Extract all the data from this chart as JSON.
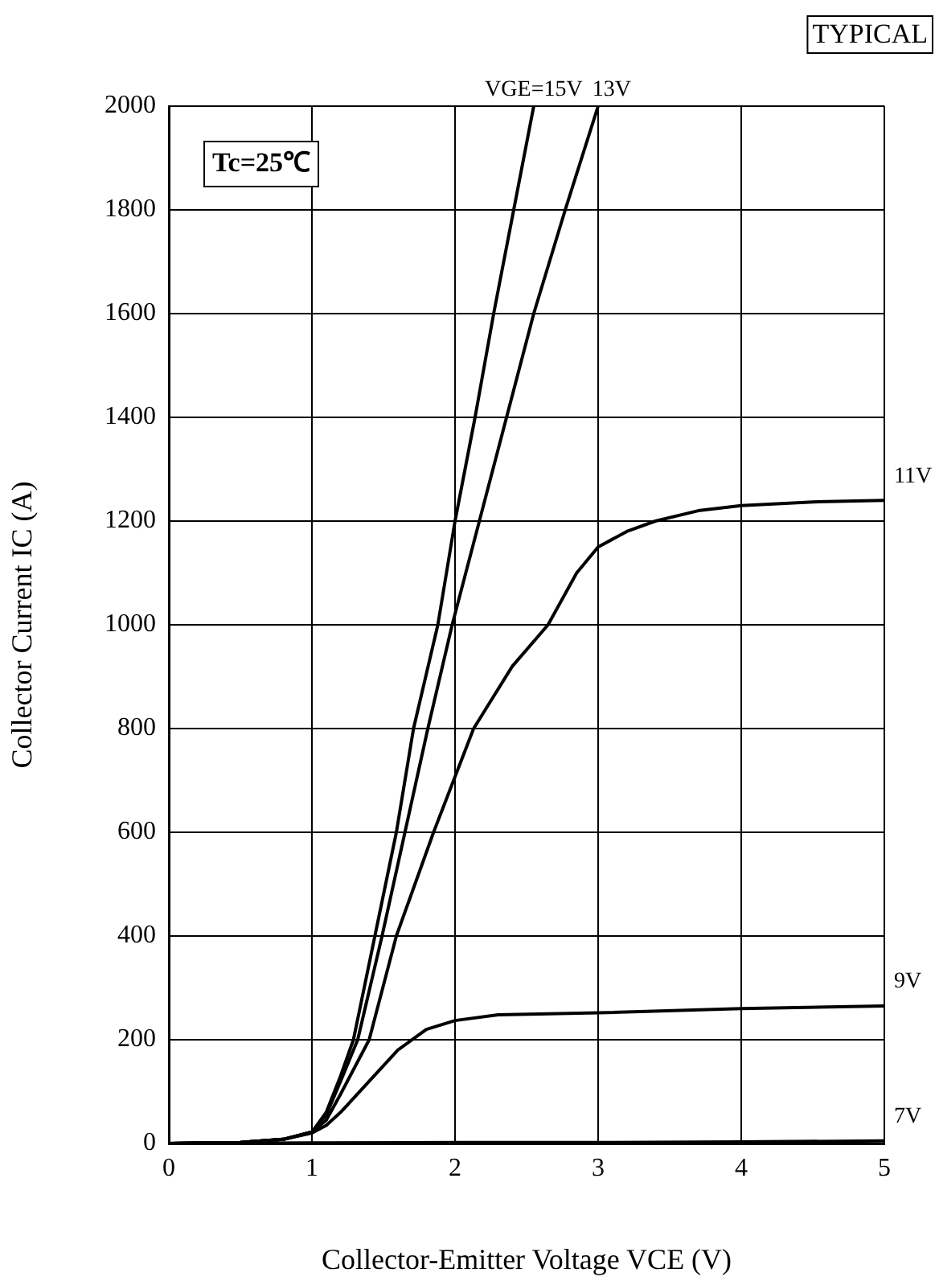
{
  "chart_data": {
    "type": "line",
    "title": "TYPICAL",
    "xlabel": "Collector-Emitter Voltage VCE (V)",
    "ylabel": "Collector Current IC (A)",
    "annotations": [
      "Tc=25℃"
    ],
    "xlim": [
      0,
      5
    ],
    "xticks": [
      0,
      1,
      2,
      3,
      4,
      5
    ],
    "ylim": [
      0,
      2000
    ],
    "yticks": [
      0,
      200,
      400,
      600,
      800,
      1000,
      1200,
      1400,
      1600,
      1800,
      2000
    ],
    "grid": true,
    "legend": false,
    "marker": "none",
    "line_style": "solid",
    "series": [
      {
        "name": "VGE=15V",
        "color": "#000000",
        "x": [
          0,
          0.5,
          0.8,
          1.0,
          1.1,
          1.2,
          1.29,
          1.44,
          1.59,
          1.71,
          1.88,
          2.0,
          2.14,
          2.27,
          2.41,
          2.55
        ],
        "values": [
          0,
          2,
          8,
          22,
          60,
          130,
          200,
          400,
          600,
          800,
          1000,
          1200,
          1400,
          1600,
          1800,
          2000
        ]
      },
      {
        "name": "13V",
        "color": "#000000",
        "x": [
          0,
          0.5,
          0.8,
          1.0,
          1.1,
          1.2,
          1.32,
          1.49,
          1.65,
          1.81,
          1.98,
          2.17,
          2.36,
          2.55,
          2.77,
          3.0
        ],
        "values": [
          0,
          2,
          8,
          22,
          55,
          120,
          200,
          400,
          600,
          800,
          1000,
          1200,
          1400,
          1600,
          1800,
          2000
        ]
      },
      {
        "name": "11V",
        "color": "#000000",
        "x": [
          0,
          0.5,
          0.8,
          1.0,
          1.1,
          1.2,
          1.4,
          1.59,
          1.85,
          2.13,
          2.4,
          2.65,
          2.85,
          3.0,
          3.2,
          3.4,
          3.7,
          4.0,
          4.5,
          5.0
        ],
        "values": [
          0,
          2,
          8,
          22,
          45,
          95,
          200,
          400,
          600,
          800,
          920,
          1000,
          1100,
          1150,
          1180,
          1200,
          1220,
          1230,
          1237,
          1240
        ]
      },
      {
        "name": "9V",
        "color": "#000000",
        "x": [
          0,
          0.5,
          0.8,
          1.0,
          1.1,
          1.2,
          1.4,
          1.6,
          1.8,
          2.0,
          2.3,
          3.0,
          4.0,
          5.0
        ],
        "values": [
          0,
          2,
          8,
          20,
          35,
          60,
          120,
          180,
          220,
          237,
          248,
          252,
          260,
          265
        ]
      },
      {
        "name": "7V",
        "color": "#000000",
        "x": [
          0,
          1,
          2,
          3,
          4,
          5
        ],
        "values": [
          0,
          1,
          2,
          2,
          3,
          5
        ]
      }
    ]
  }
}
